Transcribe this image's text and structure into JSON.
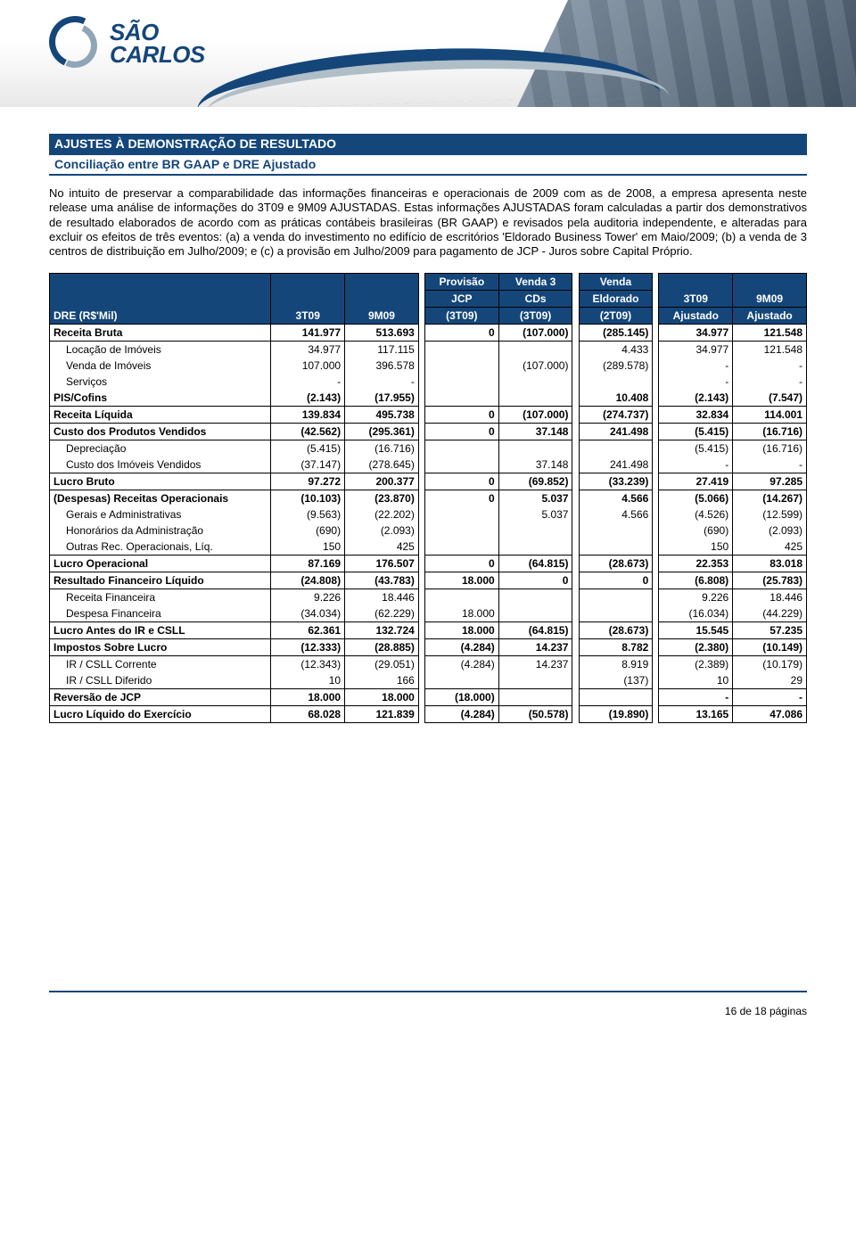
{
  "logo": {
    "line1": "SÃO",
    "line2": "CARLOS"
  },
  "section": {
    "title": "AJUSTES À DEMONSTRAÇÃO DE RESULTADO",
    "subtitle": "Conciliação entre BR GAAP e DRE Ajustado"
  },
  "paragraph": "No intuito de preservar a comparabilidade das informações financeiras e operacionais de 2009 com as de 2008, a empresa apresenta neste release uma análise de informações do 3T09 e 9M09 AJUSTADAS. Estas informações AJUSTADAS foram calculadas a partir dos demonstrativos de resultado elaborados de acordo com as práticas contábeis brasileiras (BR GAAP) e revisados pela auditoria independente, e alteradas para excluir os efeitos de três eventos: (a) a venda do investimento no edifício de escritórios 'Eldorado Business Tower' em Maio/2009; (b) a venda de 3 centros de distribuição em Julho/2009; e (c) a provisão em Julho/2009 para pagamento de JCP - Juros sobre Capital Próprio.",
  "table": {
    "head": {
      "label": "DRE (R$'Mil)",
      "c1": "3T09",
      "c2": "9M09",
      "c3a": "Provisão",
      "c3b": "JCP",
      "c3c": "(3T09)",
      "c4a": "Venda 3",
      "c4b": "CDs",
      "c4c": "(3T09)",
      "c5a": "Venda",
      "c5b": "Eldorado",
      "c5c": "(2T09)",
      "c6a": "3T09",
      "c6b": "Ajustado",
      "c7a": "9M09",
      "c7b": "Ajustado"
    },
    "rows": [
      {
        "type": "section",
        "lbl": "Receita Bruta",
        "v": [
          "141.977",
          "513.693",
          "0",
          "(107.000)",
          "(285.145)",
          "34.977",
          "121.548"
        ]
      },
      {
        "type": "indent",
        "lbl": "Locação de Imóveis",
        "v": [
          "34.977",
          "117.115",
          "",
          "",
          "4.433",
          "34.977",
          "121.548"
        ]
      },
      {
        "type": "indent",
        "lbl": "Venda de Imóveis",
        "v": [
          "107.000",
          "396.578",
          "",
          "(107.000)",
          "(289.578)",
          "-",
          "-"
        ]
      },
      {
        "type": "indent",
        "lbl": "Serviços",
        "v": [
          "-",
          "-",
          "",
          "",
          "",
          "-",
          "-"
        ]
      },
      {
        "type": "bold",
        "lbl": "PIS/Cofins",
        "v": [
          "(2.143)",
          "(17.955)",
          "",
          "",
          "10.408",
          "(2.143)",
          "(7.547)"
        ]
      },
      {
        "type": "section",
        "lbl": "Receita Líquida",
        "v": [
          "139.834",
          "495.738",
          "0",
          "(107.000)",
          "(274.737)",
          "32.834",
          "114.001"
        ]
      },
      {
        "type": "section",
        "lbl": "Custo dos Produtos Vendidos",
        "v": [
          "(42.562)",
          "(295.361)",
          "0",
          "37.148",
          "241.498",
          "(5.415)",
          "(16.716)"
        ]
      },
      {
        "type": "indent",
        "lbl": "Depreciação",
        "v": [
          "(5.415)",
          "(16.716)",
          "",
          "",
          "",
          "(5.415)",
          "(16.716)"
        ]
      },
      {
        "type": "indent",
        "lbl": "Custo dos Imóveis Vendidos",
        "v": [
          "(37.147)",
          "(278.645)",
          "",
          "37.148",
          "241.498",
          "-",
          "-"
        ]
      },
      {
        "type": "section",
        "lbl": "Lucro Bruto",
        "v": [
          "97.272",
          "200.377",
          "0",
          "(69.852)",
          "(33.239)",
          "27.419",
          "97.285"
        ]
      },
      {
        "type": "bold",
        "lbl": "(Despesas) Receitas Operacionais",
        "v": [
          "(10.103)",
          "(23.870)",
          "0",
          "5.037",
          "4.566",
          "(5.066)",
          "(14.267)"
        ]
      },
      {
        "type": "indent",
        "lbl": "Gerais e Administrativas",
        "v": [
          "(9.563)",
          "(22.202)",
          "",
          "5.037",
          "4.566",
          "(4.526)",
          "(12.599)"
        ]
      },
      {
        "type": "indent",
        "lbl": "Honorários da Administração",
        "v": [
          "(690)",
          "(2.093)",
          "",
          "",
          "",
          "(690)",
          "(2.093)"
        ]
      },
      {
        "type": "indent",
        "lbl": "Outras Rec. Operacionais, Líq.",
        "v": [
          "150",
          "425",
          "",
          "",
          "",
          "150",
          "425"
        ]
      },
      {
        "type": "section",
        "lbl": "Lucro Operacional",
        "v": [
          "87.169",
          "176.507",
          "0",
          "(64.815)",
          "(28.673)",
          "22.353",
          "83.018"
        ]
      },
      {
        "type": "section",
        "lbl": "Resultado Financeiro Líquido",
        "v": [
          "(24.808)",
          "(43.783)",
          "18.000",
          "0",
          "0",
          "(6.808)",
          "(25.783)"
        ]
      },
      {
        "type": "indent",
        "lbl": "Receita Financeira",
        "v": [
          "9.226",
          "18.446",
          "",
          "",
          "",
          "9.226",
          "18.446"
        ]
      },
      {
        "type": "indent",
        "lbl": "Despesa Financeira",
        "v": [
          "(34.034)",
          "(62.229)",
          "18.000",
          "",
          "",
          "(16.034)",
          "(44.229)"
        ]
      },
      {
        "type": "section",
        "lbl": "Lucro Antes do IR e CSLL",
        "v": [
          "62.361",
          "132.724",
          "18.000",
          "(64.815)",
          "(28.673)",
          "15.545",
          "57.235"
        ]
      },
      {
        "type": "section",
        "lbl": "Impostos Sobre Lucro",
        "v": [
          "(12.333)",
          "(28.885)",
          "(4.284)",
          "14.237",
          "8.782",
          "(2.380)",
          "(10.149)"
        ]
      },
      {
        "type": "indent",
        "lbl": "IR / CSLL Corrente",
        "v": [
          "(12.343)",
          "(29.051)",
          "(4.284)",
          "14.237",
          "8.919",
          "(2.389)",
          "(10.179)"
        ]
      },
      {
        "type": "indent",
        "lbl": "IR / CSLL Diferido",
        "v": [
          "10",
          "166",
          "",
          "",
          "(137)",
          "10",
          "29"
        ]
      },
      {
        "type": "section",
        "lbl": "Reversão de JCP",
        "v": [
          "18.000",
          "18.000",
          "(18.000)",
          "",
          "",
          "-",
          "-"
        ]
      },
      {
        "type": "section",
        "lbl": "Lucro Líquido do Exercício",
        "v": [
          "68.028",
          "121.839",
          "(4.284)",
          "(50.578)",
          "(19.890)",
          "13.165",
          "47.086"
        ]
      }
    ]
  },
  "footer": "16 de 18 páginas"
}
